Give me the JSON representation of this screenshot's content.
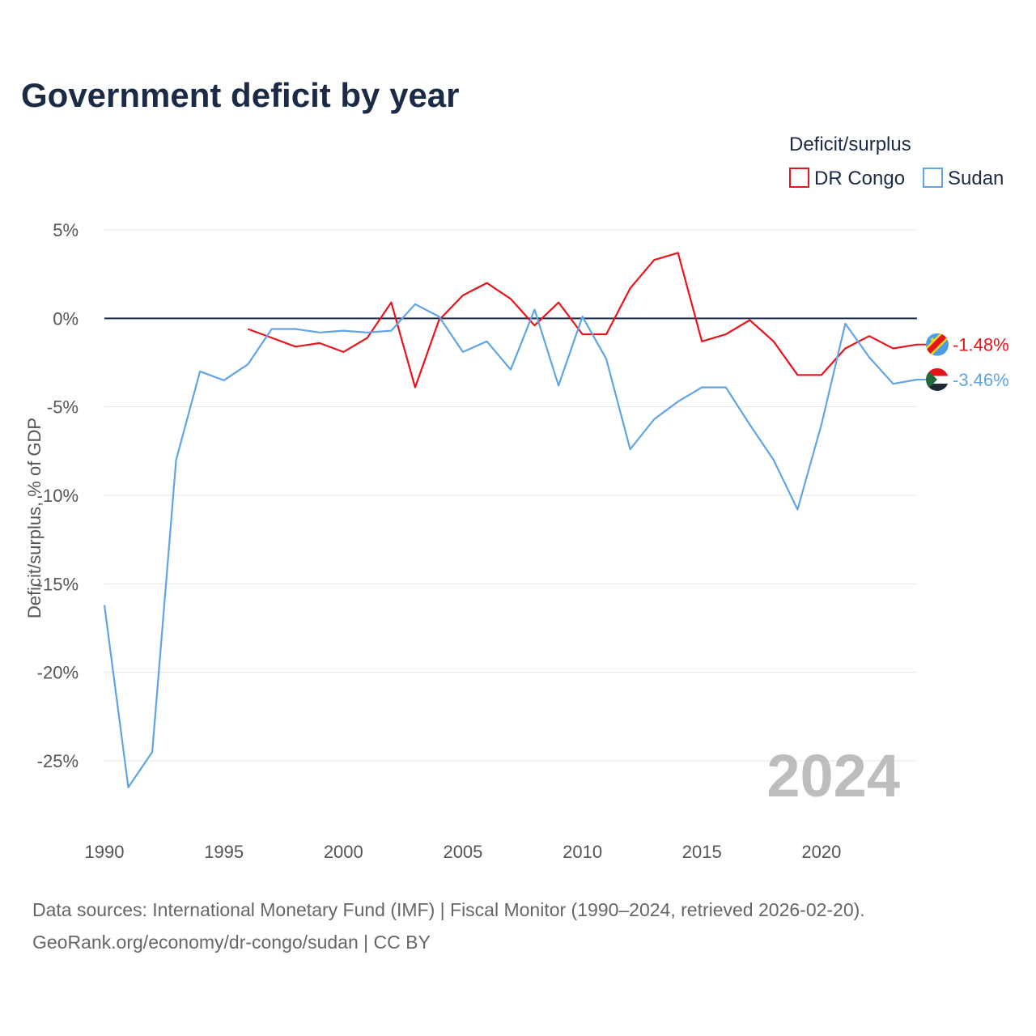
{
  "chart_data": {
    "type": "line",
    "title": "Government deficit by year",
    "xlabel": "",
    "ylabel": "Deficit/surplus, % of GDP",
    "legend_title": "Deficit/surplus",
    "legend_position": "top-right",
    "xlim": [
      1990,
      2024
    ],
    "ylim": [
      -27.5,
      5
    ],
    "x_ticks": [
      1990,
      1995,
      2000,
      2005,
      2010,
      2015,
      2020
    ],
    "y_ticks": [
      5,
      0,
      -5,
      -10,
      -15,
      -20,
      -25
    ],
    "y_tick_labels": [
      "5%",
      "0%",
      "-5%",
      "-10%",
      "-15%",
      "-20%",
      "-25%"
    ],
    "zero_line": true,
    "grid": true,
    "highlight_year": "2024",
    "series": [
      {
        "name": "DR Congo",
        "color": "#e8141c",
        "end_label": "-1.48%",
        "flag_icon": "dr-congo-flag-icon",
        "points": [
          [
            1996,
            -0.6
          ],
          [
            1997,
            -1.1
          ],
          [
            1998,
            -1.6
          ],
          [
            1999,
            -1.4
          ],
          [
            2000,
            -1.9
          ],
          [
            2001,
            -1.1
          ],
          [
            2002,
            0.9
          ],
          [
            2003,
            -3.9
          ],
          [
            2004,
            -0.1
          ],
          [
            2005,
            1.3
          ],
          [
            2006,
            2.0
          ],
          [
            2007,
            1.1
          ],
          [
            2008,
            -0.4
          ],
          [
            2009,
            0.9
          ],
          [
            2010,
            -0.9
          ],
          [
            2011,
            -0.9
          ],
          [
            2012,
            1.7
          ],
          [
            2013,
            3.3
          ],
          [
            2014,
            3.7
          ],
          [
            2015,
            -1.3
          ],
          [
            2016,
            -0.9
          ],
          [
            2017,
            -0.1
          ],
          [
            2018,
            -1.3
          ],
          [
            2019,
            -3.2
          ],
          [
            2020,
            -3.2
          ],
          [
            2021,
            -1.7
          ],
          [
            2022,
            -1.0
          ],
          [
            2023,
            -1.7
          ],
          [
            2024,
            -1.48
          ]
        ]
      },
      {
        "name": "Sudan",
        "color": "#5fa4e6",
        "end_label": "-3.46%",
        "flag_icon": "sudan-flag-icon",
        "points": [
          [
            1990,
            -16.2
          ],
          [
            1991,
            -26.5
          ],
          [
            1992,
            -24.5
          ],
          [
            1993,
            -8.0
          ],
          [
            1994,
            -3.0
          ],
          [
            1995,
            -3.5
          ],
          [
            1996,
            -2.6
          ],
          [
            1997,
            -0.6
          ],
          [
            1998,
            -0.6
          ],
          [
            1999,
            -0.8
          ],
          [
            2000,
            -0.7
          ],
          [
            2001,
            -0.8
          ],
          [
            2002,
            -0.7
          ],
          [
            2003,
            0.8
          ],
          [
            2004,
            0.1
          ],
          [
            2005,
            -1.9
          ],
          [
            2006,
            -1.3
          ],
          [
            2007,
            -2.9
          ],
          [
            2008,
            0.5
          ],
          [
            2009,
            -3.8
          ],
          [
            2010,
            0.1
          ],
          [
            2011,
            -2.3
          ],
          [
            2012,
            -7.4
          ],
          [
            2013,
            -5.7
          ],
          [
            2014,
            -4.7
          ],
          [
            2015,
            -3.9
          ],
          [
            2016,
            -3.9
          ],
          [
            2017,
            -6.0
          ],
          [
            2018,
            -8.0
          ],
          [
            2019,
            -10.8
          ],
          [
            2020,
            -6.0
          ],
          [
            2021,
            -0.3
          ],
          [
            2022,
            -2.2
          ],
          [
            2023,
            -3.7
          ],
          [
            2024,
            -3.46
          ]
        ]
      }
    ]
  },
  "footer": {
    "source_line": "Data sources: International Monetary Fund (IMF) | Fiscal Monitor (1990–2024, retrieved 2026-02-20).",
    "url_line": "GeoRank.org/economy/dr-congo/sudan | CC BY"
  }
}
